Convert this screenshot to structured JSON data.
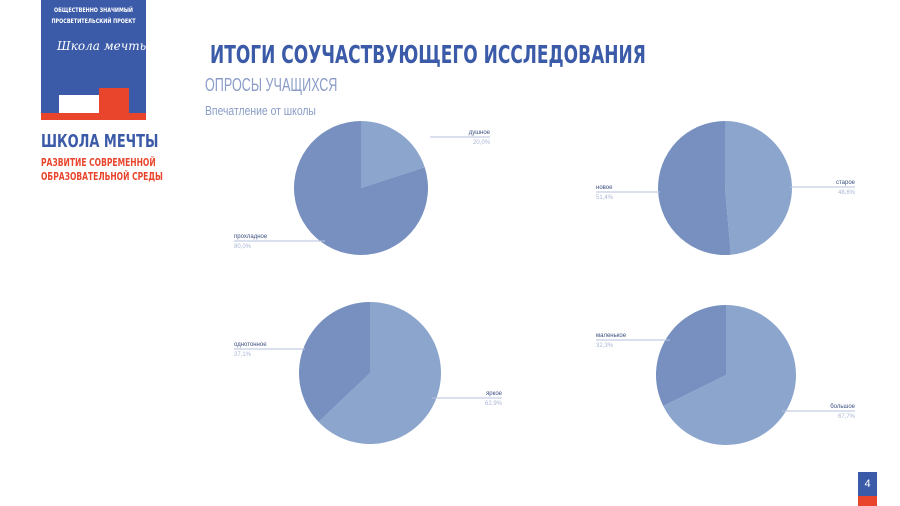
{
  "logo": {
    "line1": "ОБЩЕСТВЕННО ЗНАЧИМЫЙ",
    "line2": "ПРОСВЕТИТЕЛЬСКИЙ ПРОЕКТ",
    "script": "Школа мечты",
    "brand": "ШКОЛА МЕЧТЫ",
    "sub1": "РАЗВИТИЕ СОВРЕМЕННОЙ",
    "sub2": "ОБРАЗОВАТЕЛЬНОЙ СРЕДЫ",
    "blue": "#3b5ba8",
    "red": "#e8452c"
  },
  "header": {
    "title": "ИТОГИ СОУЧАСТВУЮЩЕГО ИССЛЕДОВАНИЯ",
    "subtitle": "ОПРОСЫ УЧАЩИХСЯ",
    "caption": "Впечатление от школы"
  },
  "page_number": "4",
  "colors": {
    "dark": "#7790c0",
    "light": "#8ca5cd"
  },
  "chart_data": [
    {
      "type": "pie",
      "slices": [
        {
          "label": "душное",
          "value": 20.0,
          "display": "20,0%"
        },
        {
          "label": "прохладное",
          "value": 80.0,
          "display": "80,0%"
        }
      ]
    },
    {
      "type": "pie",
      "slices": [
        {
          "label": "старое",
          "value": 48.6,
          "display": "48,6%"
        },
        {
          "label": "новое",
          "value": 51.4,
          "display": "51,4%"
        }
      ]
    },
    {
      "type": "pie",
      "slices": [
        {
          "label": "яркое",
          "value": 62.9,
          "display": "62,9%"
        },
        {
          "label": "однотонное",
          "value": 37.1,
          "display": "37,1%"
        }
      ]
    },
    {
      "type": "pie",
      "slices": [
        {
          "label": "большое",
          "value": 67.7,
          "display": "67,7%"
        },
        {
          "label": "маленькое",
          "value": 32.3,
          "display": "32,3%"
        }
      ]
    }
  ]
}
